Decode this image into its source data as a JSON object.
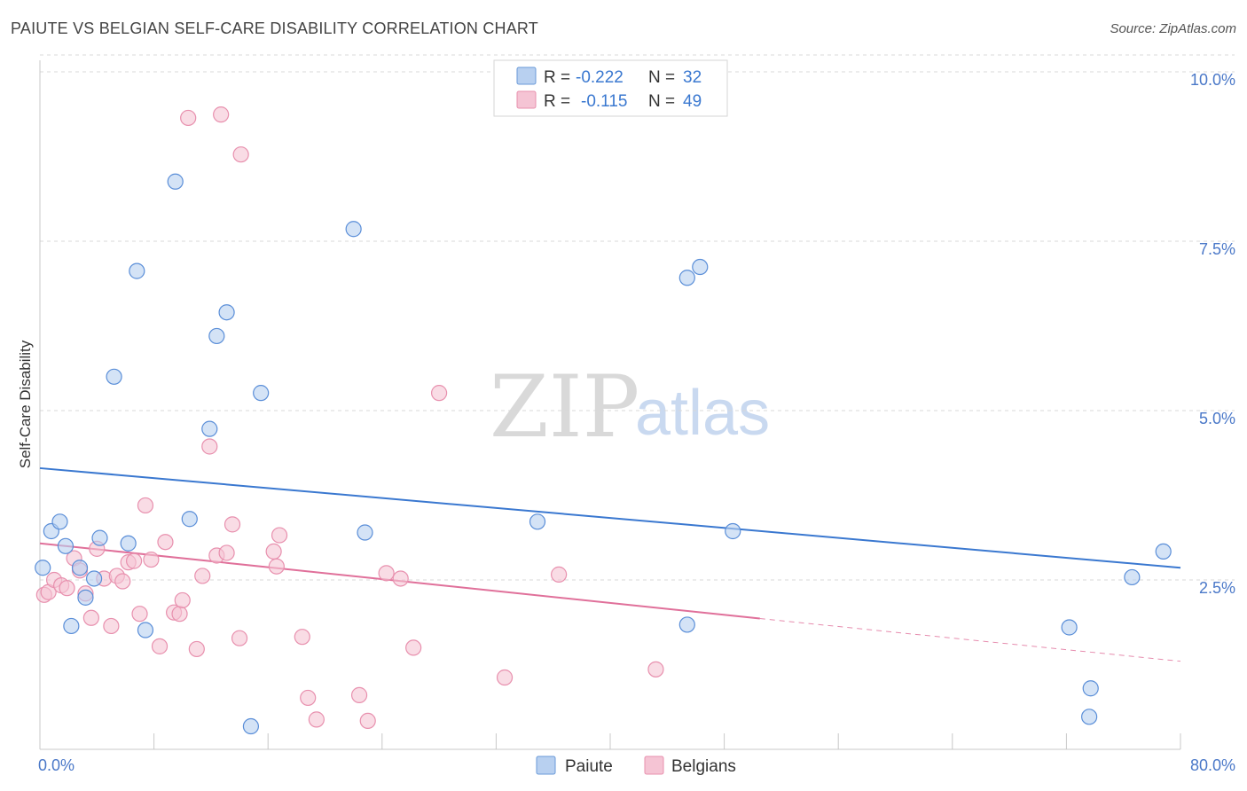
{
  "title": "PAIUTE VS BELGIAN SELF-CARE DISABILITY CORRELATION CHART",
  "source": "Source: ZipAtlas.com",
  "watermark": {
    "zip": "ZIP",
    "atlas": "atlas"
  },
  "colors": {
    "paiute": "#3a78d0",
    "paiute_fill": "#b8d0f0",
    "belgians": "#e0709a",
    "belgians_fill": "#f5c4d4",
    "tick": "#4a78c8",
    "grid": "#d8d8d8"
  },
  "legend_top": {
    "paiute": {
      "r_label": "R =",
      "r_value": "-0.222",
      "n_label": "N =",
      "n_value": "32"
    },
    "belgians": {
      "r_label": "R =",
      "r_value": "-0.115",
      "n_label": "N =",
      "n_value": "49"
    }
  },
  "chart_data": {
    "type": "scatter",
    "title": "PAIUTE VS BELGIAN SELF-CARE DISABILITY CORRELATION CHART",
    "xlabel": "",
    "ylabel": "Self-Care Disability",
    "xlim": [
      0,
      80
    ],
    "ylim": [
      0,
      10.5
    ],
    "x_tick_labels": [
      "0.0%",
      "80.0%"
    ],
    "y_ticks": [
      2.5,
      5.0,
      7.5,
      10.0
    ],
    "y_tick_labels": [
      "2.5%",
      "5.0%",
      "7.5%",
      "10.0%"
    ],
    "grid": true,
    "legend": [
      "Paiute",
      "Belgians"
    ],
    "series": [
      {
        "name": "Paiute",
        "r": -0.222,
        "n": 32,
        "trend": {
          "x": [
            0,
            80
          ],
          "y": [
            4.15,
            2.68
          ]
        },
        "points": [
          [
            0.2,
            2.68
          ],
          [
            0.8,
            3.22
          ],
          [
            1.4,
            3.36
          ],
          [
            1.8,
            3.0
          ],
          [
            2.2,
            1.82
          ],
          [
            2.8,
            2.68
          ],
          [
            3.2,
            2.24
          ],
          [
            3.8,
            2.52
          ],
          [
            4.2,
            3.12
          ],
          [
            5.2,
            5.5
          ],
          [
            6.2,
            3.04
          ],
          [
            6.8,
            7.06
          ],
          [
            7.4,
            1.76
          ],
          [
            9.5,
            8.38
          ],
          [
            10.5,
            3.4
          ],
          [
            11.9,
            4.73
          ],
          [
            12.4,
            6.1
          ],
          [
            13.1,
            6.45
          ],
          [
            14.8,
            0.34
          ],
          [
            15.5,
            5.26
          ],
          [
            22.0,
            7.68
          ],
          [
            22.8,
            3.2
          ],
          [
            34.9,
            3.36
          ],
          [
            45.4,
            1.84
          ],
          [
            45.4,
            6.96
          ],
          [
            46.3,
            7.12
          ],
          [
            48.6,
            3.22
          ],
          [
            72.2,
            1.8
          ],
          [
            73.7,
            0.9
          ],
          [
            73.6,
            0.48
          ],
          [
            76.6,
            2.54
          ],
          [
            78.8,
            2.92
          ]
        ]
      },
      {
        "name": "Belgians",
        "r": -0.115,
        "n": 49,
        "trend": {
          "x": [
            0,
            50.5
          ],
          "y": [
            3.04,
            1.93
          ],
          "dashed_x": [
            50.5,
            80
          ],
          "dashed_y": [
            1.93,
            1.3
          ]
        },
        "points": [
          [
            0.3,
            2.28
          ],
          [
            0.6,
            2.32
          ],
          [
            1.0,
            2.5
          ],
          [
            1.5,
            2.42
          ],
          [
            1.9,
            2.38
          ],
          [
            2.4,
            2.82
          ],
          [
            2.8,
            2.64
          ],
          [
            3.2,
            2.3
          ],
          [
            3.6,
            1.94
          ],
          [
            4.0,
            2.96
          ],
          [
            4.5,
            2.52
          ],
          [
            5.0,
            1.82
          ],
          [
            5.4,
            2.56
          ],
          [
            5.8,
            2.48
          ],
          [
            6.2,
            2.76
          ],
          [
            6.6,
            2.78
          ],
          [
            7.0,
            2.0
          ],
          [
            7.4,
            3.6
          ],
          [
            7.8,
            2.8
          ],
          [
            8.4,
            1.52
          ],
          [
            8.8,
            3.06
          ],
          [
            9.4,
            2.02
          ],
          [
            9.8,
            2.0
          ],
          [
            10.0,
            2.2
          ],
          [
            10.4,
            9.32
          ],
          [
            11.0,
            1.48
          ],
          [
            11.4,
            2.56
          ],
          [
            11.9,
            4.47
          ],
          [
            12.4,
            2.86
          ],
          [
            12.7,
            9.37
          ],
          [
            13.1,
            2.9
          ],
          [
            13.5,
            3.32
          ],
          [
            14.1,
            8.78
          ],
          [
            14.0,
            1.64
          ],
          [
            16.4,
            2.92
          ],
          [
            16.6,
            2.7
          ],
          [
            16.8,
            3.16
          ],
          [
            18.4,
            1.66
          ],
          [
            18.8,
            0.76
          ],
          [
            19.4,
            0.44
          ],
          [
            22.4,
            0.8
          ],
          [
            23.0,
            0.42
          ],
          [
            24.3,
            2.6
          ],
          [
            25.3,
            2.52
          ],
          [
            26.2,
            1.5
          ],
          [
            28.0,
            5.26
          ],
          [
            32.6,
            1.06
          ],
          [
            36.4,
            2.58
          ],
          [
            43.2,
            1.18
          ]
        ]
      }
    ]
  },
  "legend_bottom": {
    "paiute": "Paiute",
    "belgians": "Belgians"
  }
}
